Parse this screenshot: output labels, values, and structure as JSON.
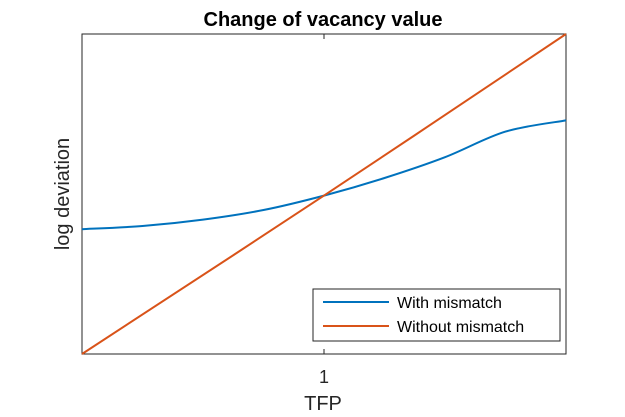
{
  "chart_data": {
    "type": "line",
    "title": "Change of vacancy value",
    "xlabel": "TFP",
    "ylabel": "log deviation",
    "xlim": [
      0.9,
      1.1
    ],
    "ylim": [
      -1.0,
      1.0
    ],
    "xticks": [
      1
    ],
    "xtick_labels": [
      "1"
    ],
    "grid": false,
    "legend_position": "bottom-right",
    "series": [
      {
        "name": "With mismatch",
        "color": "#0072BD",
        "x": [
          0.9,
          0.925,
          0.95,
          0.975,
          1.0,
          1.025,
          1.05,
          1.075,
          1.1
        ],
        "y": [
          -0.22,
          -0.2,
          -0.16,
          -0.1,
          -0.01,
          0.1,
          0.23,
          0.39,
          0.46
        ]
      },
      {
        "name": "Without mismatch",
        "color": "#D95319",
        "x": [
          0.9,
          1.0,
          1.1
        ],
        "y": [
          -1.0,
          -0.01,
          1.0
        ]
      }
    ]
  }
}
